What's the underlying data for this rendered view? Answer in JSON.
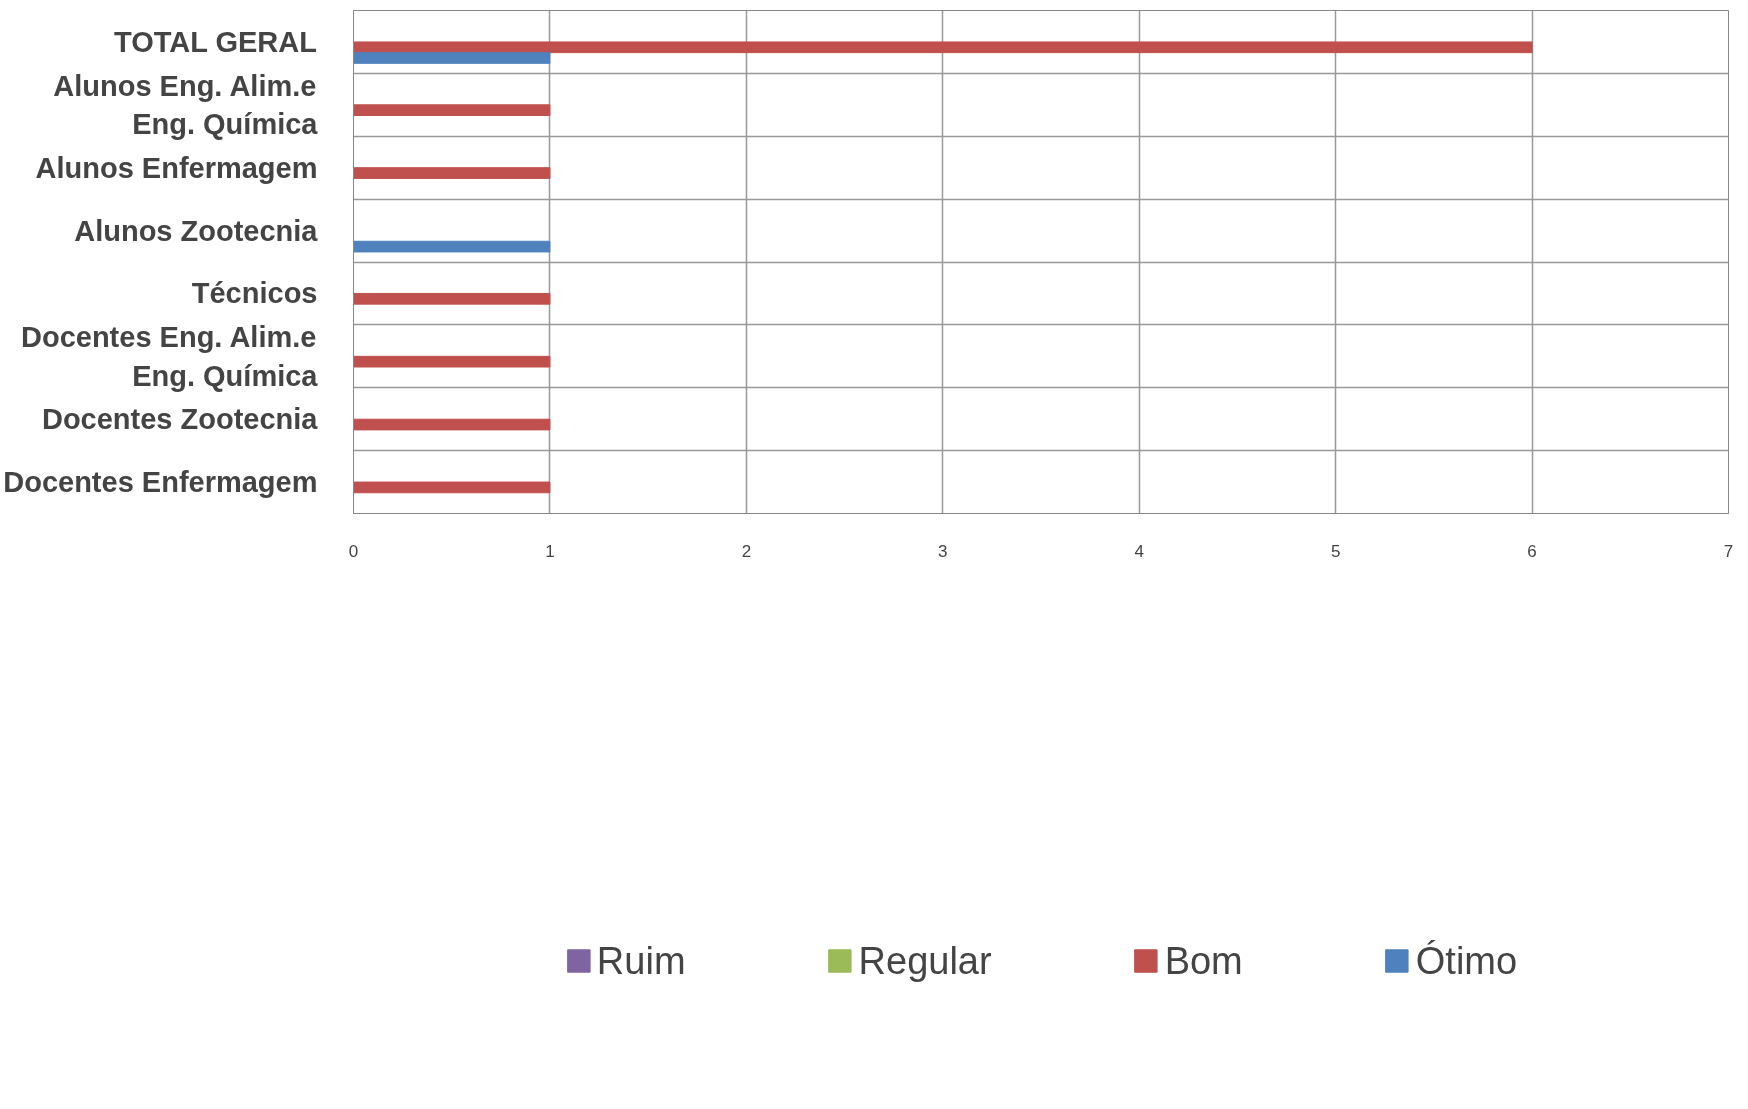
{
  "chart_data": {
    "type": "bar",
    "orientation": "horizontal",
    "categories": [
      "TOTAL GERAL",
      "Alunos Eng. Alim.e Eng. Química",
      "Alunos Enfermagem",
      "Alunos Zootecnia",
      "Técnicos",
      "Docentes Eng. Alim.e Eng. Química",
      "Docentes Zootecnia",
      "Docentes Enfermagem"
    ],
    "series": [
      {
        "name": "Ruim",
        "color": "#8064a2",
        "values": [
          0,
          0,
          0,
          0,
          0,
          0,
          0,
          0
        ]
      },
      {
        "name": "Regular",
        "color": "#9bbb59",
        "values": [
          0,
          0,
          0,
          0,
          0,
          0,
          0,
          0
        ]
      },
      {
        "name": "Bom",
        "color": "#c0504d",
        "values": [
          6,
          1,
          1,
          0,
          1,
          1,
          1,
          1
        ]
      },
      {
        "name": "Ótimo",
        "color": "#4f81bd",
        "values": [
          1,
          0,
          0,
          1,
          0,
          0,
          0,
          0
        ]
      }
    ],
    "xlim": [
      0,
      7
    ],
    "xticks": [
      0,
      1,
      2,
      3,
      4,
      5,
      6,
      7
    ],
    "grid": true,
    "legend": "bottom"
  }
}
